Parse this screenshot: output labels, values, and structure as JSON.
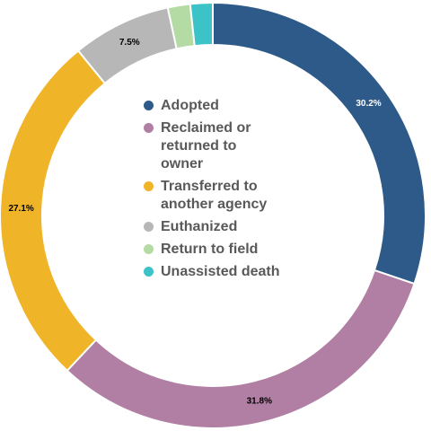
{
  "chart_data": {
    "type": "pie",
    "donut": true,
    "categories": [
      "Adopted",
      "Reclaimed or returned to owner",
      "Transferred to another agency",
      "Euthanized",
      "Return to field",
      "Unassisted death"
    ],
    "legend_labels": [
      "Adopted",
      "Reclaimed or\nreturned to\nowner",
      "Transferred to\nanother agency",
      "Euthanized",
      "Return to field",
      "Unassisted death"
    ],
    "values": [
      30.2,
      31.8,
      27.1,
      7.5,
      1.7,
      1.7
    ],
    "data_labels": [
      "30.2%",
      "31.8%",
      "27.1%",
      "7.5%",
      "",
      ""
    ],
    "colors": [
      "#2e5a8a",
      "#b07fa3",
      "#f0b429",
      "#b7b7b7",
      "#b5dba4",
      "#3cc3c8"
    ],
    "label_colors": [
      "#ffffff",
      "#000000",
      "#000000",
      "#000000",
      "#000000",
      "#000000"
    ],
    "start_angle_deg": 0,
    "direction": "clockwise",
    "legend_placement": "center"
  }
}
